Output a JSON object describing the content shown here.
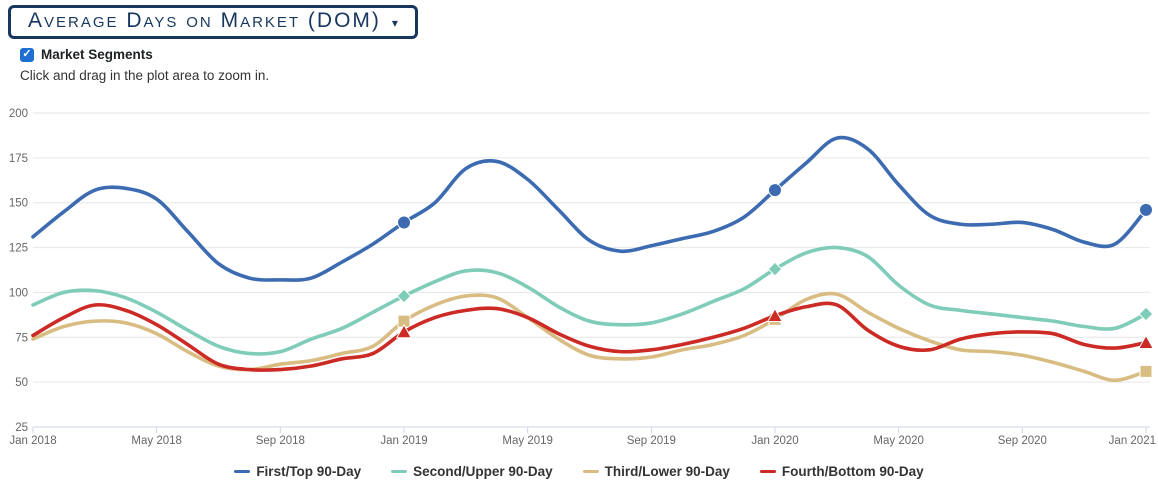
{
  "title": {
    "label": "Average Days on Market (DOM)"
  },
  "icons": {
    "caret": "▾",
    "check": "✓"
  },
  "controls": {
    "market_segments_label": "Market Segments",
    "market_segments_checked": true,
    "hint": "Click and drag in the plot area to zoom in."
  },
  "theme": {
    "title_color": "#17375e",
    "checkbox_color": "#1d6fd2",
    "grid_color": "#e6e6e6",
    "axis_line_color": "#ccd6eb",
    "tick_label_color": "#666666",
    "legend_text_color": "#333333"
  },
  "chart_data": {
    "type": "line",
    "subtype": "spline",
    "grid": "horizontal",
    "legend_position": "bottom",
    "ylim": [
      25,
      200
    ],
    "y_ticks": [
      25,
      50,
      75,
      100,
      125,
      150,
      175,
      200
    ],
    "x_tick_interval": 4,
    "x": [
      "Jan 2018",
      "Feb 2018",
      "Mar 2018",
      "Apr 2018",
      "May 2018",
      "Jun 2018",
      "Jul 2018",
      "Aug 2018",
      "Sep 2018",
      "Oct 2018",
      "Nov 2018",
      "Dec 2018",
      "Jan 2019",
      "Feb 2019",
      "Mar 2019",
      "Apr 2019",
      "May 2019",
      "Jun 2019",
      "Jul 2019",
      "Aug 2019",
      "Sep 2019",
      "Oct 2019",
      "Nov 2019",
      "Dec 2019",
      "Jan 2020",
      "Feb 2020",
      "Mar 2020",
      "Apr 2020",
      "May 2020",
      "Jun 2020",
      "Jul 2020",
      "Aug 2020",
      "Sep 2020",
      "Oct 2020",
      "Nov 2020",
      "Dec 2020",
      "Jan 2021"
    ],
    "marker_indices": [
      12,
      24,
      36
    ],
    "series": [
      {
        "name": "First/Top 90-Day",
        "color": "#3c6bb2",
        "marker": "circle",
        "values": [
          131,
          145,
          157,
          158,
          152,
          134,
          116,
          108,
          107,
          108,
          117,
          127,
          139,
          150,
          169,
          173,
          163,
          146,
          129,
          123,
          126,
          130,
          134,
          142,
          157,
          172,
          186,
          180,
          160,
          143,
          138,
          138,
          139,
          135,
          128,
          127,
          146
        ]
      },
      {
        "name": "Second/Upper 90-Day",
        "color": "#7fccb8",
        "marker": "diamond",
        "values": [
          93,
          100,
          101,
          97,
          89,
          79,
          70,
          66,
          67,
          74,
          80,
          89,
          98,
          106,
          112,
          111,
          103,
          92,
          84,
          82,
          83,
          88,
          95,
          102,
          113,
          122,
          125,
          120,
          104,
          93,
          90,
          88,
          86,
          84,
          81,
          80,
          88
        ]
      },
      {
        "name": "Third/Lower 90-Day",
        "color": "#d8bc82",
        "marker": "square",
        "values": [
          74,
          81,
          84,
          83,
          77,
          67,
          59,
          57,
          60,
          62,
          66,
          70,
          84,
          93,
          98,
          97,
          86,
          74,
          65,
          63,
          64,
          68,
          71,
          76,
          85,
          96,
          99,
          89,
          80,
          73,
          68,
          67,
          65,
          61,
          56,
          51,
          56
        ]
      },
      {
        "name": "Fourth/Bottom 90-Day",
        "color": "#cc2a25",
        "marker": "triangle",
        "values": [
          76,
          86,
          93,
          90,
          82,
          71,
          60,
          57,
          57,
          59,
          63,
          66,
          78,
          86,
          90,
          91,
          86,
          77,
          70,
          67,
          68,
          71,
          75,
          80,
          87,
          92,
          93,
          79,
          70,
          68,
          74,
          77,
          78,
          77,
          71,
          69,
          72
        ]
      }
    ]
  }
}
